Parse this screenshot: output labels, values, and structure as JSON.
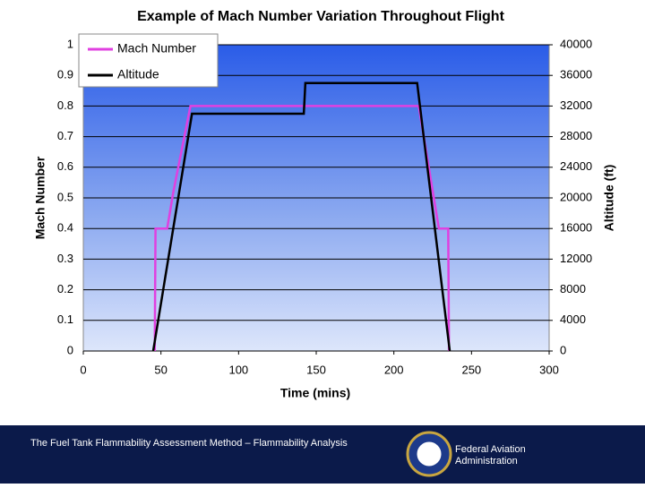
{
  "chart_data": {
    "type": "line",
    "title": "Example of Mach Number Variation Throughout Flight",
    "x_label": "Time (mins)",
    "y_label": "Mach Number",
    "y2_label": "Altitude (ft)",
    "xlim": [
      0,
      300
    ],
    "xticks": [
      0,
      50,
      100,
      150,
      200,
      250,
      300
    ],
    "ylim": [
      0,
      1
    ],
    "yticks": [
      0,
      0.1,
      0.2,
      0.3,
      0.4,
      0.5,
      0.6,
      0.7,
      0.8,
      0.9,
      1
    ],
    "y2lim": [
      0,
      40000
    ],
    "y2ticks": [
      0,
      4000,
      8000,
      12000,
      16000,
      20000,
      24000,
      28000,
      32000,
      36000,
      40000
    ],
    "grid": true,
    "legend": "upper left",
    "series": [
      {
        "name": "Mach Number",
        "color": "#e040e0",
        "x": [
          46,
          46.5,
          54,
          58,
          69,
          216,
          229,
          235,
          235.5
        ],
        "values": [
          0,
          0.4,
          0.4,
          0.52,
          0.8,
          0.8,
          0.4,
          0.4,
          0
        ]
      },
      {
        "name": "Altitude",
        "color": "#000000",
        "axis": "y2",
        "x": [
          45,
          70,
          142,
          143,
          215,
          236
        ],
        "values": [
          0,
          31000,
          31000,
          35000,
          35000,
          0
        ]
      }
    ]
  },
  "footer": {
    "caption": "The Fuel Tank Flammability Assessment Method – Flammability Analysis",
    "agency": "Federal Aviation Administration"
  }
}
